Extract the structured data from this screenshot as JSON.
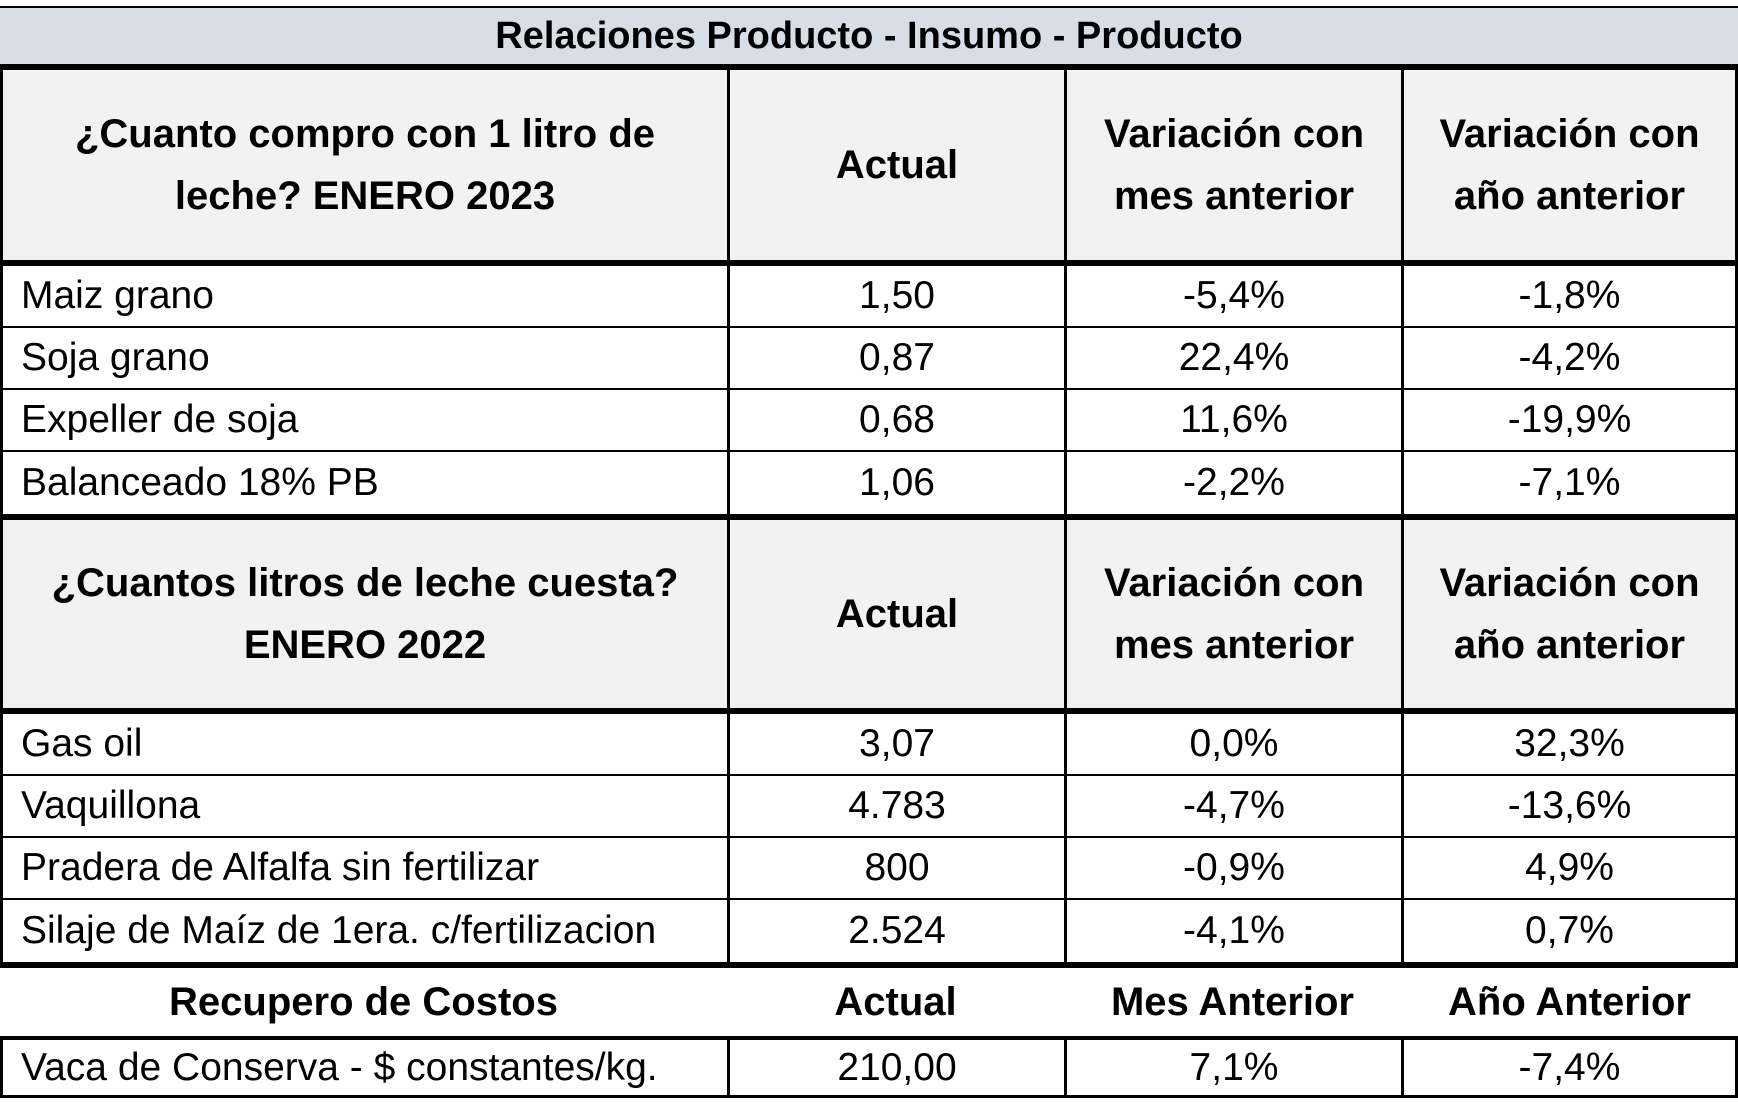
{
  "title": "Relaciones Producto - Insumo - Producto",
  "section1": {
    "header": [
      "¿Cuanto compro con 1 litro de leche? ENERO 2023",
      "Actual",
      "Variación con mes anterior",
      "Variación con año anterior"
    ],
    "header_lines": {
      "c1": [
        "¿Cuanto compro con 1 litro de",
        "leche? ENERO 2023"
      ],
      "c3": [
        "Variación con",
        "mes anterior"
      ],
      "c4": [
        "Variación con",
        "año anterior"
      ]
    },
    "rows": [
      [
        "Maiz grano",
        "1,50",
        "-5,4%",
        "-1,8%"
      ],
      [
        "Soja grano",
        "0,87",
        "22,4%",
        "-4,2%"
      ],
      [
        "Expeller de soja",
        "0,68",
        "11,6%",
        "-19,9%"
      ],
      [
        "Balanceado 18% PB",
        "1,06",
        "-2,2%",
        "-7,1%"
      ]
    ]
  },
  "section2": {
    "header": [
      "¿Cuantos litros de leche cuesta? ENERO 2022",
      "Actual",
      "Variación con mes anterior",
      "Variación con año anterior"
    ],
    "header_lines": {
      "c1": [
        "¿Cuantos litros de leche cuesta?",
        "ENERO 2022"
      ],
      "c3": [
        "Variación con",
        "mes anterior"
      ],
      "c4": [
        "Variación con",
        "año anterior"
      ]
    },
    "rows": [
      [
        "Gas oil",
        "3,07",
        "0,0%",
        "32,3%"
      ],
      [
        "Vaquillona",
        "4.783",
        "-4,7%",
        "-13,6%"
      ],
      [
        "Pradera de Alfalfa sin fertilizar",
        "800",
        "-0,9%",
        "4,9%"
      ],
      [
        "Silaje de Maíz de 1era. c/fertilizacion",
        "2.524",
        "-4,1%",
        "0,7%"
      ]
    ]
  },
  "section3": {
    "header": [
      "Recupero de Costos",
      "Actual",
      "Mes Anterior",
      "Año Anterior"
    ],
    "rows": [
      [
        "Vaca de Conserva - $ constantes/kg.",
        "210,00",
        "7,1%",
        "-7,4%"
      ]
    ]
  }
}
